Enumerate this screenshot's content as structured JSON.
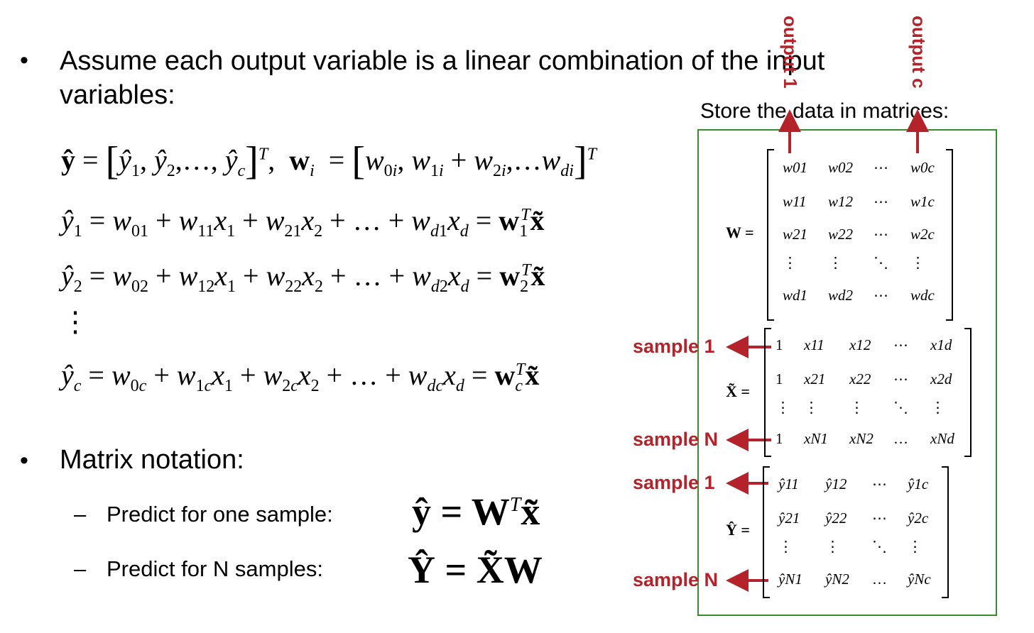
{
  "bullets": [
    {
      "text_line1": "Assume each output variable is a linear combination of the input",
      "text_line2": "variables:"
    },
    {
      "text_line1": "Matrix notation:"
    }
  ],
  "sub_bullets": [
    {
      "label": "Predict for one sample:",
      "equation": "ŷ = Wᵀx̃"
    },
    {
      "label": "Predict for N samples:",
      "equation": "Ŷ = X̃W"
    }
  ],
  "equations": {
    "def": "ŷ = [ŷ₁, ŷ₂, …, ŷ_c]ᵀ, wᵢ = [w₀ᵢ, w₁ᵢ + w₂ᵢ, … w_dᵢ]ᵀ",
    "y1": "ŷ₁ = w₀₁ + w₁₁x₁ + w₂₁x₂ + … + w_d1 x_d = w₁ᵀx̃",
    "y2": "ŷ₂ = w₀₂ + w₁₂x₁ + w₂₂x₂ + … + w_d2 x_d = w₂ᵀx̃",
    "yc": "ŷ_c = w₀c + w₁c x₁ + w₂c x₂ + … + w_dc x_d = w_cᵀx̃"
  },
  "store_title": "Store the data in matrices:",
  "output_labels": [
    "output 1",
    "output c"
  ],
  "sample_labels": {
    "x_first": "sample 1",
    "x_last": "sample N",
    "y_first": "sample 1",
    "y_last": "sample N"
  },
  "matrices": {
    "W": {
      "name": "W =",
      "rows": [
        [
          "w01",
          "w02",
          "⋯",
          "w0c"
        ],
        [
          "w11",
          "w12",
          "⋯",
          "w1c"
        ],
        [
          "w21",
          "w22",
          "⋯",
          "w2c"
        ],
        [
          "⋮",
          "⋮",
          "⋱",
          "⋮"
        ],
        [
          "wd1",
          "wd2",
          "⋯",
          "wdc"
        ]
      ]
    },
    "X": {
      "name": "X̃ =",
      "rows": [
        [
          "1",
          "x11",
          "x12",
          "⋯",
          "x1d"
        ],
        [
          "1",
          "x21",
          "x22",
          "⋯",
          "x2d"
        ],
        [
          "⋮",
          "⋮",
          "⋮",
          "⋱",
          "⋮"
        ],
        [
          "1",
          "xN1",
          "xN2",
          "…",
          "xNd"
        ]
      ]
    },
    "Y": {
      "name": "Ŷ =",
      "rows": [
        [
          "ŷ11",
          "ŷ12",
          "⋯",
          "ŷ1c"
        ],
        [
          "ŷ21",
          "ŷ22",
          "⋯",
          "ŷ2c"
        ],
        [
          "⋮",
          "⋮",
          "⋱",
          "⋮"
        ],
        [
          "ŷN1",
          "ŷN2",
          "…",
          "ŷNc"
        ]
      ]
    }
  },
  "colors": {
    "accent_red": "#b4232a",
    "box_green": "#3a8a2f"
  }
}
